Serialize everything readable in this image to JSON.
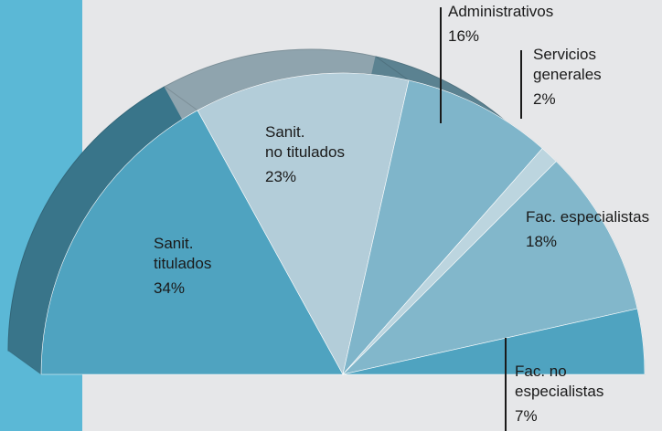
{
  "chart_data": {
    "type": "pie",
    "categories": [
      [
        "Sanit.",
        "titulados"
      ],
      [
        "Sanit.",
        "no titulados"
      ],
      [
        "Administrativos"
      ],
      [
        "Servicios",
        "generales"
      ],
      [
        "Fac. especialistas"
      ],
      [
        "Fac. no",
        "especialistas"
      ]
    ],
    "values": [
      34,
      23,
      16,
      2,
      18,
      7
    ],
    "value_labels": [
      "34%",
      "23%",
      "16%",
      "2%",
      "18%",
      "7%"
    ],
    "colors": [
      "#4fa3c0",
      "#b3cdd9",
      "#7fb5ca",
      "#bcd5df",
      "#82b7cb",
      "#4fa3c0"
    ]
  }
}
